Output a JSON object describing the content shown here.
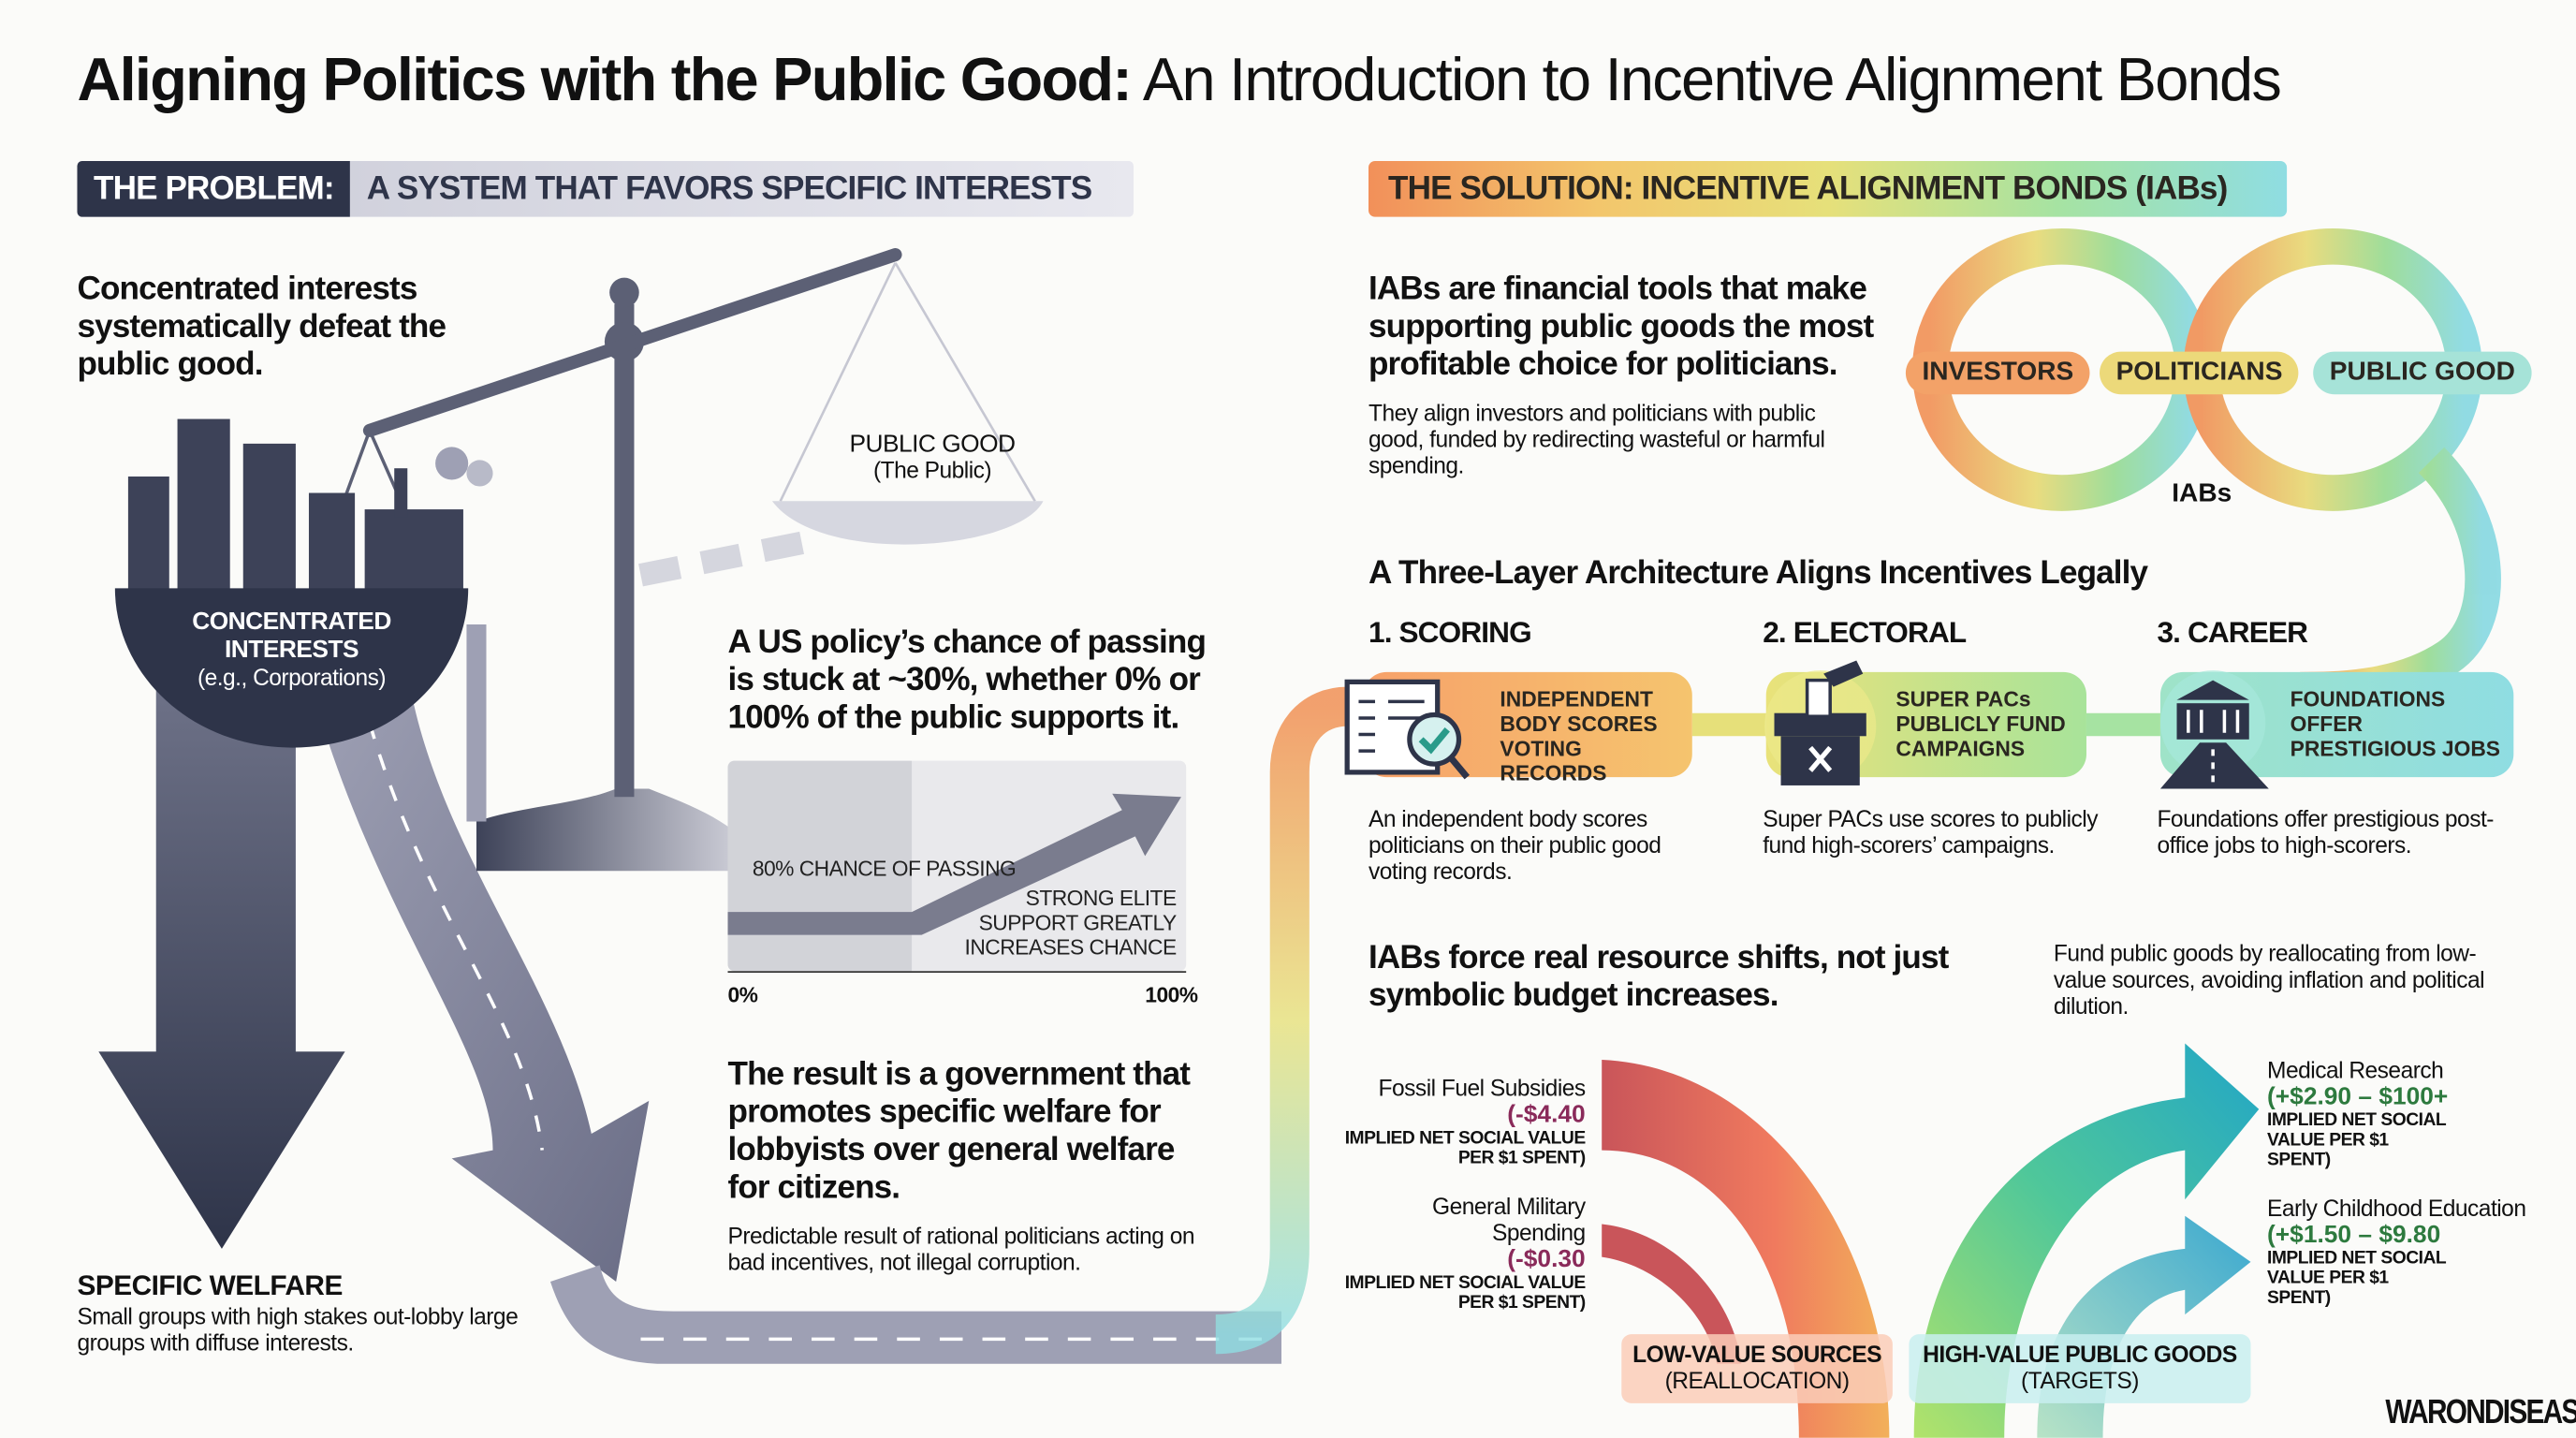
{
  "title": {
    "bold": "Aligning Politics with the Public Good:",
    "regular": "An Introduction to Incentive Alignment Bonds"
  },
  "problem": {
    "banner_label": "THE PROBLEM:",
    "banner_text": "A SYSTEM THAT FAVORS SPECIFIC INTERESTS",
    "headline": "Concentrated interests systematically defeat the public good.",
    "concentrated": {
      "title": "CONCENTRATED INTERESTS",
      "sub": "(e.g., Corporations)"
    },
    "public_good": {
      "title": "PUBLIC GOOD",
      "sub": "(The Public)"
    },
    "policy_headline": "A US policy’s chance of passing is stuck at ~30%, whether 0% or 100% of the public supports it.",
    "chart": {
      "left_label": "80% CHANCE OF PASSING",
      "right_label": "STRONG ELITE SUPPORT GREATLY INCREASES CHANCE",
      "x_min_label": "0%",
      "x_max_label": "100%"
    },
    "result_headline": "The result is a government that promotes specific welfare for lobbyists over general welfare for citizens.",
    "result_note": "Predictable result of rational politicians acting on bad incentives, not illegal corruption.",
    "specific_welfare": {
      "title": "SPECIFIC WELFARE",
      "text": "Small groups with high stakes out-lobby large groups with diffuse interests."
    }
  },
  "solution": {
    "banner": "THE SOLUTION: INCENTIVE ALIGNMENT BONDS (IABs)",
    "headline": "IABs are financial tools that make supporting public goods the most profitable choice for politicians.",
    "text": "They align investors and politicians with public good, funded by redirecting wasteful or harmful spending.",
    "loop": {
      "pills": [
        "INVESTORS",
        "POLITICIANS",
        "PUBLIC GOOD"
      ],
      "label": "IABs"
    },
    "architecture_title": "A Three-Layer Architecture Aligns Incentives Legally",
    "steps": [
      {
        "heading": "1. SCORING",
        "pill": "INDEPENDENT BODY SCORES VOTING RECORDS",
        "text": "An independent body scores politicians on their public good voting records.",
        "icon": "book-magnifier-check-icon"
      },
      {
        "heading": "2. ELECTORAL",
        "pill": "SUPER PACs PUBLICLY FUND CAMPAIGNS",
        "text": "Super PACs use scores to publicly fund high-scorers’ campaigns.",
        "icon": "ballot-box-icon"
      },
      {
        "heading": "3. CAREER",
        "pill": "FOUNDATIONS OFFER PRESTIGIOUS JOBS",
        "text": "Foundations offer prestigious post-office jobs to high-scorers.",
        "icon": "institution-road-icon"
      }
    ],
    "shift_headline": "IABs force real resource shifts, not just symbolic budget increases.",
    "shift_note": "Fund public goods by reallocating from low-value sources, avoiding inflation and political dilution.",
    "sources": [
      {
        "name": "Fossil Fuel Subsidies",
        "value": "(-$4.40",
        "unit": "IMPLIED NET SOCIAL VALUE PER $1 SPENT)"
      },
      {
        "name": "General Military Spending",
        "value": "(-$0.30",
        "unit": "IMPLIED NET SOCIAL VALUE PER $1 SPENT)"
      }
    ],
    "targets": [
      {
        "name": "Medical Research",
        "value": "(+$2.90 – $100+",
        "unit": "IMPLIED NET SOCIAL VALUE PER $1 SPENT)"
      },
      {
        "name": "Early Childhood Education",
        "value": "(+$1.50 – $9.80",
        "unit": "IMPLIED NET SOCIAL VALUE PER $1 SPENT)"
      }
    ],
    "low_label": {
      "title": "LOW-VALUE SOURCES",
      "sub": "(REALLOCATION)"
    },
    "high_label": {
      "title": "HIGH-VALUE PUBLIC GOODS",
      "sub": "(TARGETS)"
    }
  },
  "watermark": "WARONDISEASE.ORG",
  "colors": {
    "navy": "#2e3449",
    "slate": "#5c6075",
    "orange": "#f08a4b",
    "yellow": "#e6d66a",
    "green": "#8fd88a",
    "cyan": "#7fd6e0",
    "negative": "#8a2a5a",
    "positive": "#2d7a3e"
  }
}
